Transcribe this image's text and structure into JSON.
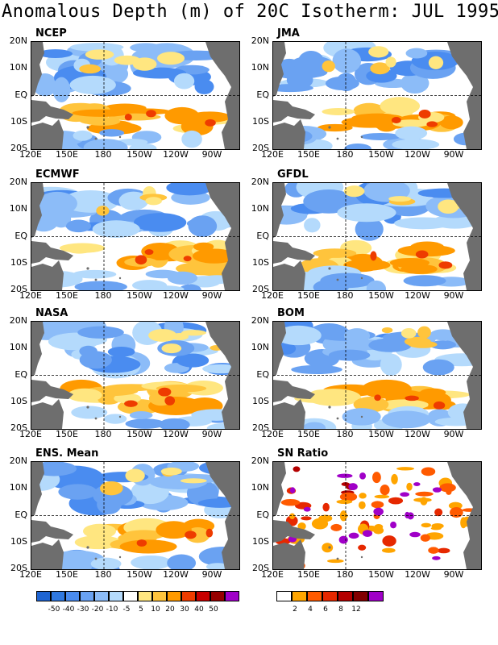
{
  "title": "Anomalous Depth (m) of 20C Isotherm: JUL 1995",
  "lat_labels": [
    "20N",
    "10N",
    "EQ",
    "10S",
    "20S"
  ],
  "lon_labels": [
    "120E",
    "150E",
    "180",
    "150W",
    "120W",
    "90W"
  ],
  "panels": [
    {
      "title": "NCEP"
    },
    {
      "title": "JMA"
    },
    {
      "title": "ECMWF"
    },
    {
      "title": "GFDL"
    },
    {
      "title": "NASA"
    },
    {
      "title": "BOM"
    },
    {
      "title": "ENS. Mean"
    },
    {
      "title": "SN Ratio"
    }
  ],
  "anomaly_colorbar": {
    "labels": [
      "-50",
      "-40",
      "-30",
      "-20",
      "-10",
      "-5",
      "5",
      "10",
      "20",
      "30",
      "40",
      "50"
    ],
    "colors": [
      "#1e64d2",
      "#2f78e0",
      "#4a8cf0",
      "#6aa2f2",
      "#8cbcf8",
      "#b4dafc",
      "#ffffff",
      "#ffe680",
      "#ffc43c",
      "#ff9a00",
      "#ee3c00",
      "#c80000",
      "#960000",
      "#a000c8"
    ]
  },
  "sn_colorbar": {
    "labels": [
      "2",
      "4",
      "6",
      "8",
      "12"
    ],
    "colors": [
      "#ffffff",
      "#ffa500",
      "#ff5a00",
      "#e62800",
      "#b40000",
      "#820000",
      "#a000c8"
    ]
  },
  "land_color": "#6e6e6e"
}
